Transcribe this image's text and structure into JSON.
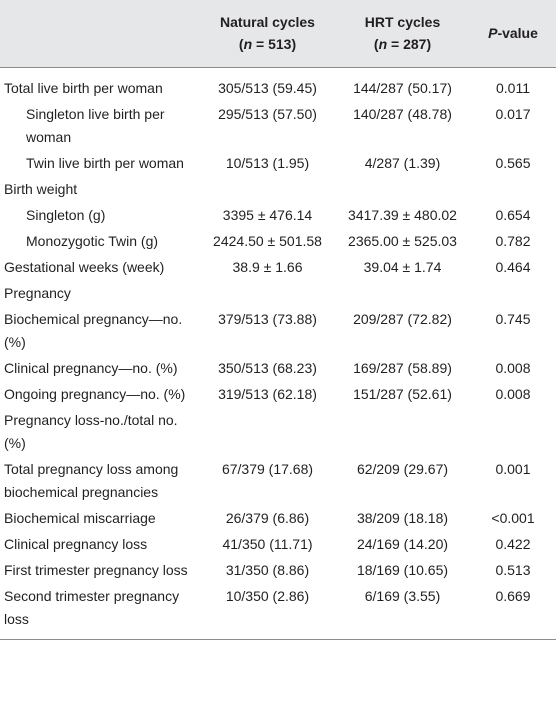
{
  "header": {
    "natural": {
      "title": "Natural cycles",
      "n_open": "(",
      "n_var": "n",
      "n_rest": " = 513)"
    },
    "hrt": {
      "title": "HRT cycles",
      "n_open": "(",
      "n_var": "n",
      "n_rest": " = 287)"
    },
    "p": {
      "var": "P",
      "rest": "-value"
    }
  },
  "rows": [
    {
      "label": "Total live birth per woman",
      "natural": "305/513 (59.45)",
      "hrt": "144/287 (50.17)",
      "p": "0.011"
    },
    {
      "label": "Singleton live birth per woman",
      "natural": "295/513 (57.50)",
      "hrt": "140/287 (48.78)",
      "p": "0.017",
      "indent": true
    },
    {
      "label": "Twin live birth per woman",
      "natural": "10/513 (1.95)",
      "hrt": "4/287 (1.39)",
      "p": "0.565",
      "indent": true
    },
    {
      "label": "Birth weight"
    },
    {
      "label": "Singleton (g)",
      "natural": "3395 ± 476.14",
      "hrt": "3417.39 ± 480.02",
      "p": "0.654",
      "indent": true
    },
    {
      "label": "Monozygotic Twin (g)",
      "natural": "2424.50 ± 501.58",
      "hrt": "2365.00 ± 525.03",
      "p": "0.782",
      "indent": true
    },
    {
      "label": "Gestational weeks (week)",
      "natural": "38.9 ± 1.66",
      "hrt": "39.04 ± 1.74",
      "p": "0.464"
    },
    {
      "label": "Pregnancy"
    },
    {
      "label": "Biochemical pregnancy—no. (%)",
      "natural": "379/513 (73.88)",
      "hrt": "209/287 (72.82)",
      "p": "0.745"
    },
    {
      "label": "Clinical pregnancy—no. (%)",
      "natural": "350/513 (68.23)",
      "hrt": "169/287 (58.89)",
      "p": "0.008"
    },
    {
      "label": "Ongoing pregnancy—no. (%)",
      "natural": "319/513 (62.18)",
      "hrt": "151/287 (52.61)",
      "p": "0.008"
    },
    {
      "label": "Pregnancy loss-no./total no. (%)"
    },
    {
      "label": "Total pregnancy loss among biochemical pregnancies",
      "natural": "67/379 (17.68)",
      "hrt": "62/209 (29.67)",
      "p": "0.001"
    },
    {
      "label": "Biochemical miscarriage",
      "natural": "26/379 (6.86)",
      "hrt": "38/209 (18.18)",
      "p": "<0.001"
    },
    {
      "label": "Clinical pregnancy loss",
      "natural": "41/350 (11.71)",
      "hrt": "24/169 (14.20)",
      "p": "0.422"
    },
    {
      "label": "First trimester pregnancy loss",
      "natural": "31/350 (8.86)",
      "hrt": "18/169 (10.65)",
      "p": "0.513"
    },
    {
      "label": "Second trimester pregnancy loss",
      "natural": "10/350 (2.86)",
      "hrt": "6/169 (3.55)",
      "p": "0.669"
    }
  ]
}
